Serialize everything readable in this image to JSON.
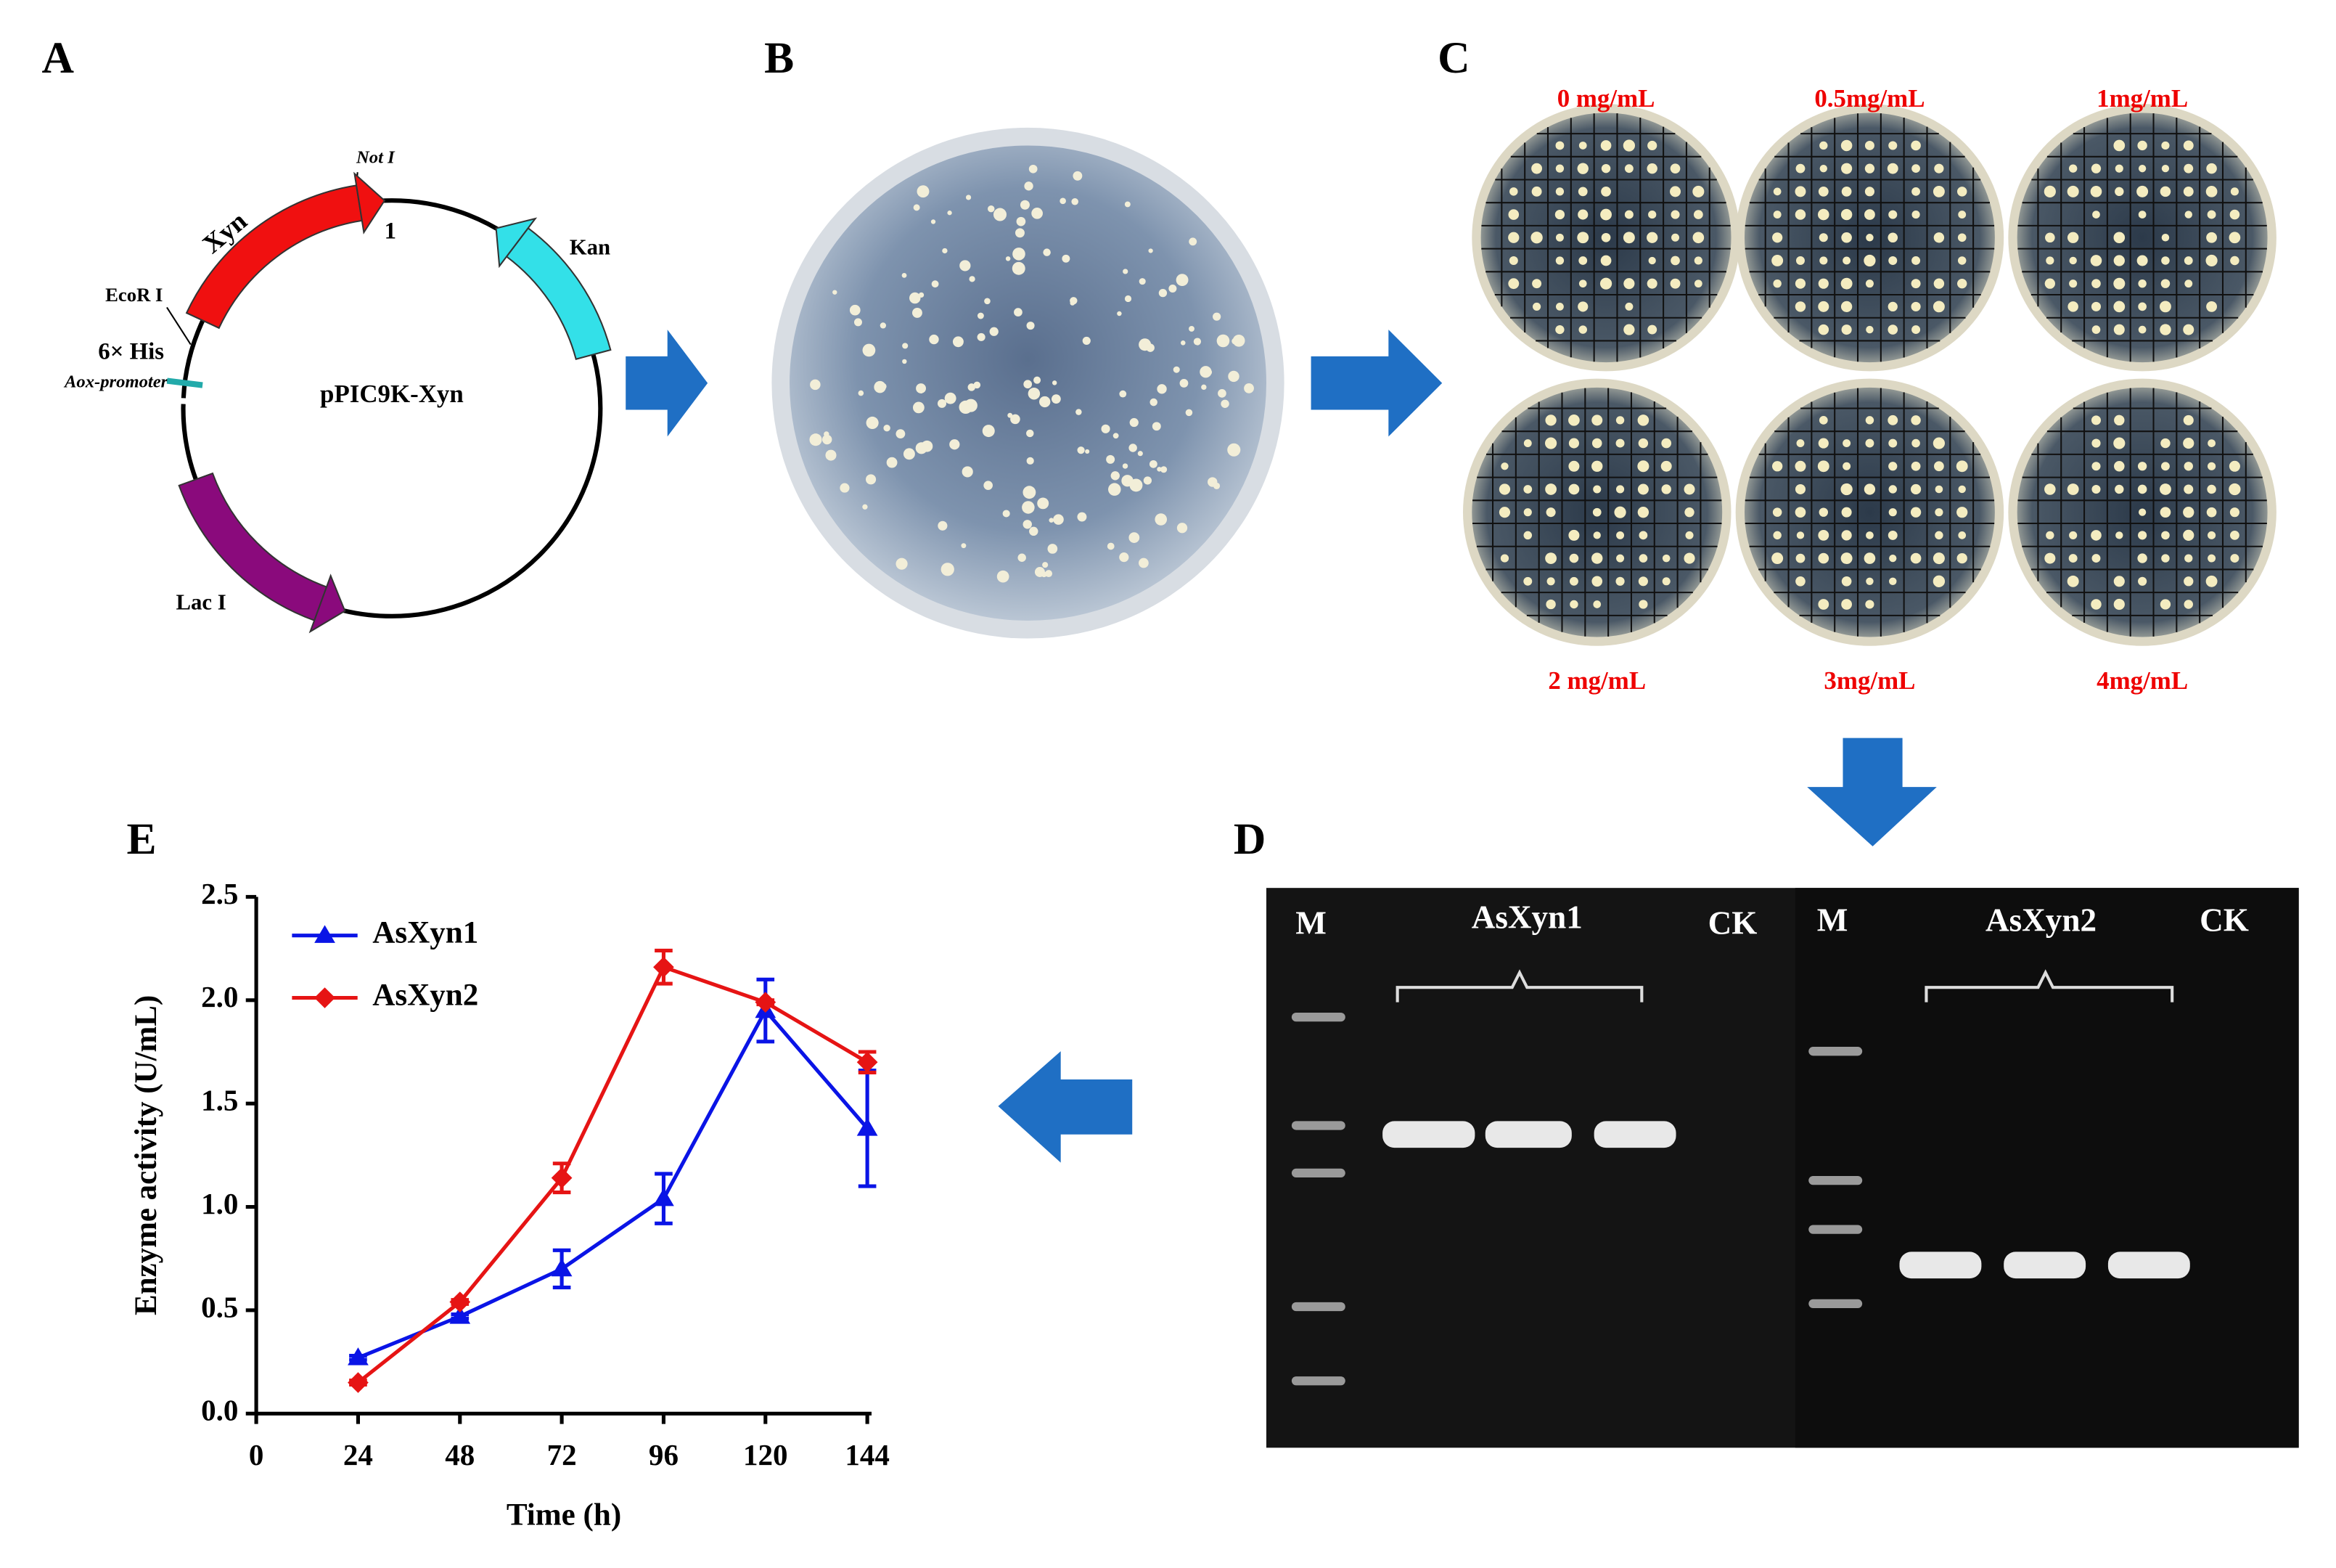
{
  "panel_labels": [
    "A",
    "B",
    "C",
    "D",
    "E"
  ],
  "plasmid": {
    "name": "pPIC9K-Xyn",
    "site_not": "Not I",
    "position": "1",
    "xyn": "Xyn",
    "site_eco": "EcoR I",
    "his": "6× His",
    "promoter": "Aox-promoter",
    "kan": "Kan",
    "lac": "Lac I"
  },
  "plates": {
    "concentrations": [
      "0 mg/mL",
      "0.5mg/mL",
      "1mg/mL",
      "2 mg/mL",
      "3mg/mL",
      "4mg/mL"
    ]
  },
  "gel": {
    "lanes": [
      "M",
      "AsXyn1",
      "CK",
      "M",
      "AsXyn2",
      "CK"
    ]
  },
  "chart_data": {
    "type": "line",
    "x_label": "Time (h)",
    "y_label": "Enzyme activity (U/mL)",
    "x": [
      24,
      48,
      72,
      96,
      120,
      144
    ],
    "series": [
      {
        "name": "AsXyn1",
        "color": "#0a14e6",
        "marker": "triangle",
        "values": [
          0.27,
          0.47,
          0.7,
          1.04,
          1.95,
          1.38
        ],
        "errors": [
          0.01,
          0.01,
          0.09,
          0.12,
          0.15,
          0.28
        ]
      },
      {
        "name": "AsXyn2",
        "color": "#e61414",
        "marker": "diamond",
        "values": [
          0.15,
          0.54,
          1.14,
          2.16,
          1.99,
          1.7
        ],
        "errors": [
          0.01,
          0.01,
          0.07,
          0.08,
          0.01,
          0.05
        ]
      }
    ],
    "xlim": [
      0,
      145
    ],
    "ylim": [
      0,
      2.5
    ],
    "xticks": [
      0,
      24,
      48,
      72,
      96,
      120,
      144
    ],
    "yticks": [
      {
        "value": 0,
        "label": "0.0"
      },
      0.5,
      {
        "value": 1,
        "label": "1.0"
      },
      1.5,
      {
        "value": 2,
        "label": "2.0"
      },
      2.5
    ]
  }
}
